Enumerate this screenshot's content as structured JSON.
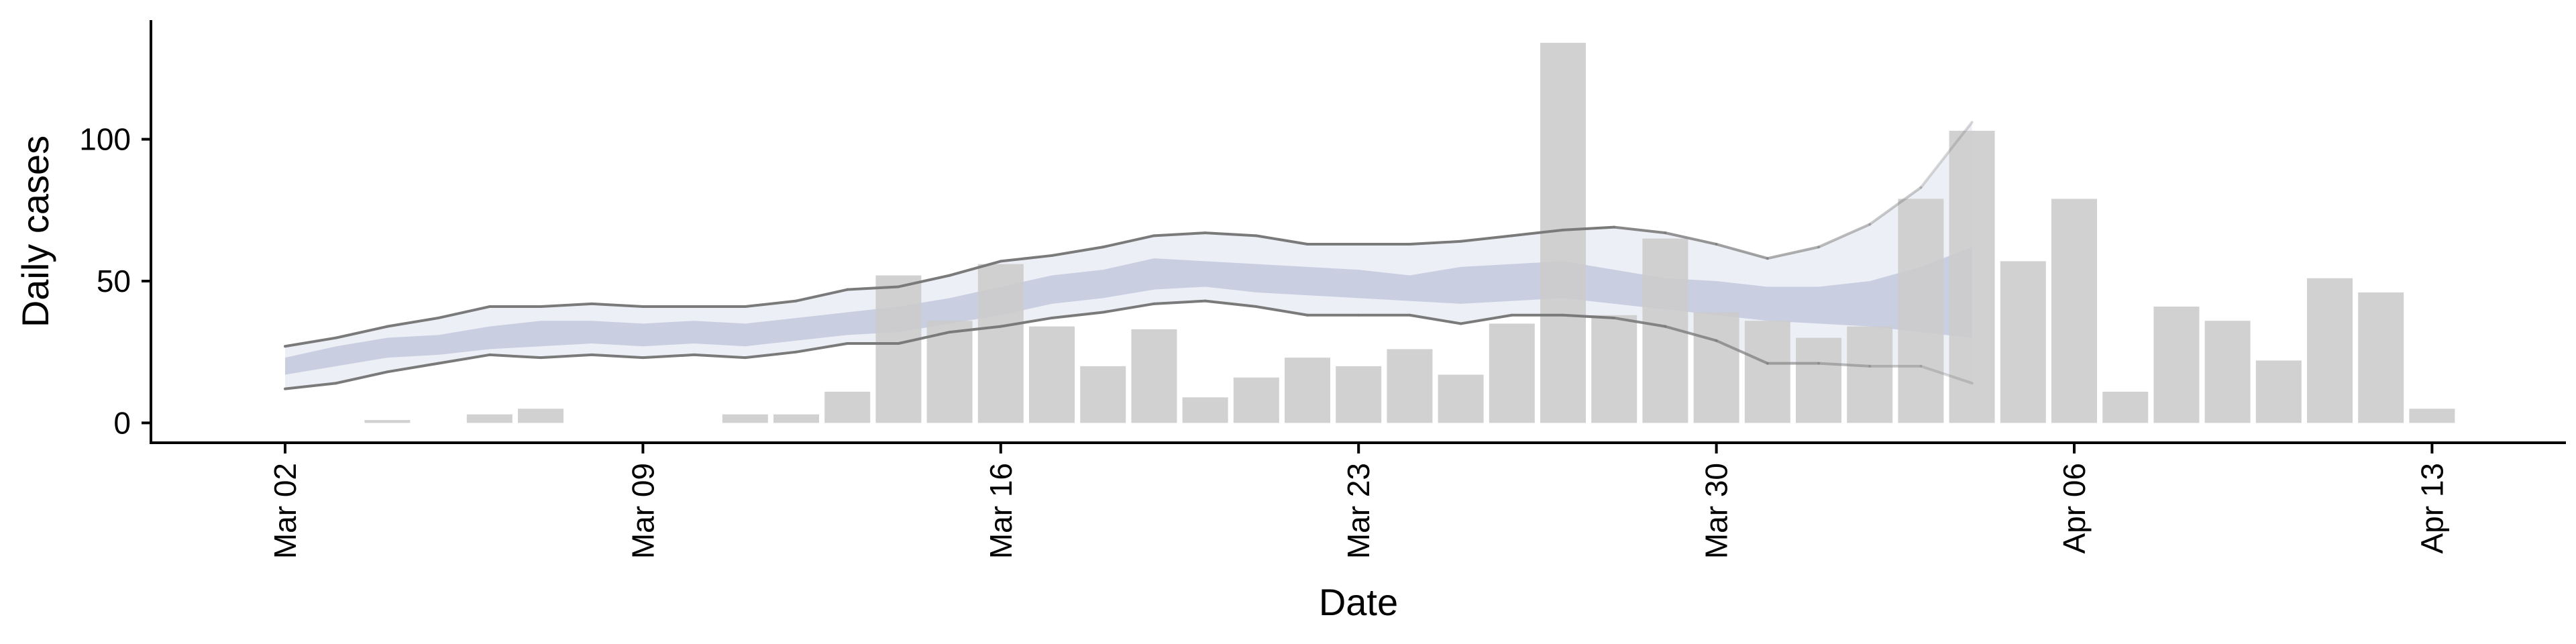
{
  "chart_data": {
    "type": "bar",
    "title": "",
    "xlabel": "Date",
    "ylabel": "Daily cases",
    "ylim": [
      -7,
      142
    ],
    "yticks": [
      0,
      50,
      100
    ],
    "xticks": [
      "Mar 02",
      "Mar 09",
      "Mar 16",
      "Mar 23",
      "Mar 30",
      "Apr 06",
      "Apr 13"
    ],
    "grid": false,
    "legend": "none",
    "colors": {
      "bars": "#cccccc",
      "inner_band": "#b9c1d9",
      "outer_band": "#e3e6f1",
      "outline": "#7a7a7a"
    },
    "bars": {
      "dates": [
        "2020-03-02",
        "2020-03-03",
        "2020-03-04",
        "2020-03-05",
        "2020-03-06",
        "2020-03-07",
        "2020-03-08",
        "2020-03-09",
        "2020-03-10",
        "2020-03-11",
        "2020-03-12",
        "2020-03-13",
        "2020-03-14",
        "2020-03-15",
        "2020-03-16",
        "2020-03-17",
        "2020-03-18",
        "2020-03-19",
        "2020-03-20",
        "2020-03-21",
        "2020-03-22",
        "2020-03-23",
        "2020-03-24",
        "2020-03-25",
        "2020-03-26",
        "2020-03-27",
        "2020-03-28",
        "2020-03-29",
        "2020-03-30",
        "2020-03-31",
        "2020-04-01",
        "2020-04-02",
        "2020-04-03",
        "2020-04-04",
        "2020-04-05",
        "2020-04-06",
        "2020-04-07",
        "2020-04-08",
        "2020-04-09",
        "2020-04-10",
        "2020-04-11",
        "2020-04-12",
        "2020-04-13"
      ],
      "values": [
        0,
        0,
        1,
        0,
        3,
        5,
        0,
        0,
        0,
        3,
        3,
        11,
        52,
        36,
        56,
        34,
        20,
        33,
        9,
        16,
        23,
        20,
        26,
        17,
        35,
        134,
        38,
        65,
        39,
        36,
        30,
        34,
        79,
        103,
        57,
        79,
        11,
        41,
        36,
        22,
        51,
        46,
        5
      ]
    },
    "band": {
      "dates": [
        "2020-03-02",
        "2020-03-03",
        "2020-03-04",
        "2020-03-05",
        "2020-03-06",
        "2020-03-07",
        "2020-03-08",
        "2020-03-09",
        "2020-03-10",
        "2020-03-11",
        "2020-03-12",
        "2020-03-13",
        "2020-03-14",
        "2020-03-15",
        "2020-03-16",
        "2020-03-17",
        "2020-03-18",
        "2020-03-19",
        "2020-03-20",
        "2020-03-21",
        "2020-03-22",
        "2020-03-23",
        "2020-03-24",
        "2020-03-25",
        "2020-03-26",
        "2020-03-27",
        "2020-03-28",
        "2020-03-29",
        "2020-03-30",
        "2020-03-31",
        "2020-04-01",
        "2020-04-02",
        "2020-04-03",
        "2020-04-04"
      ],
      "outer_lower": [
        12,
        14,
        18,
        21,
        24,
        23,
        24,
        23,
        24,
        23,
        25,
        28,
        28,
        32,
        34,
        37,
        39,
        42,
        43,
        41,
        38,
        38,
        38,
        35,
        38,
        38,
        37,
        34,
        29,
        21,
        21,
        20,
        20,
        14
      ],
      "outer_upper": [
        27,
        30,
        34,
        37,
        41,
        41,
        42,
        41,
        41,
        41,
        43,
        47,
        48,
        52,
        57,
        59,
        62,
        66,
        67,
        66,
        63,
        63,
        63,
        64,
        66,
        68,
        69,
        67,
        63,
        58,
        62,
        70,
        83,
        106
      ],
      "inner_lower": [
        17,
        20,
        23,
        24,
        26,
        27,
        28,
        27,
        28,
        27,
        29,
        31,
        32,
        35,
        38,
        42,
        44,
        47,
        48,
        46,
        45,
        44,
        43,
        42,
        43,
        44,
        42,
        40,
        38,
        36,
        35,
        34,
        32,
        30
      ],
      "inner_upper": [
        23,
        27,
        30,
        31,
        34,
        36,
        36,
        35,
        36,
        35,
        37,
        39,
        41,
        44,
        48,
        52,
        54,
        58,
        57,
        56,
        55,
        54,
        52,
        55,
        56,
        57,
        54,
        51,
        50,
        48,
        48,
        50,
        55,
        62
      ]
    }
  }
}
